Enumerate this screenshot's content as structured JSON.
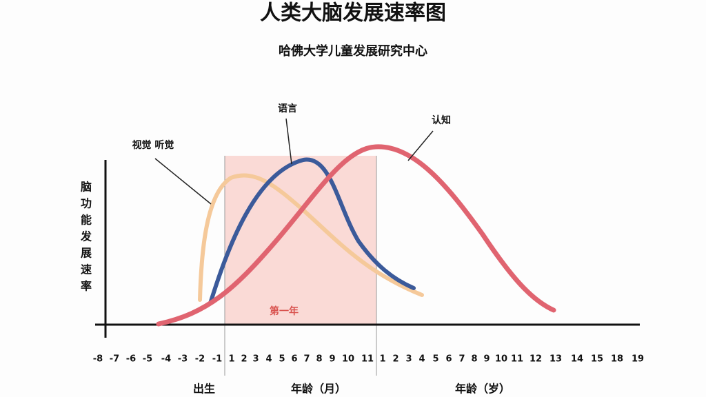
{
  "title": "人类大脑发展速率图",
  "subtitle": "哈佛大学儿童发展研究中心",
  "y_label": [
    "脑",
    "功",
    "能",
    "发",
    "展",
    "速",
    "率"
  ],
  "annotations": {
    "vision_hearing": "视觉 听觉",
    "language": "语言",
    "cognition": "认知",
    "first_year": "第一年"
  },
  "x_ticks": [
    "-8",
    "-7",
    "-6",
    "-5",
    "-4",
    "-3",
    "-2",
    "-1",
    "1",
    "2",
    "3",
    "4",
    "5",
    "6",
    "7",
    "8",
    "9",
    "10",
    "11",
    "1",
    "2",
    "3",
    "4",
    "5",
    "6",
    "7",
    "8",
    "9",
    "10",
    "11",
    "12",
    "13",
    "14",
    "15",
    "18",
    "19"
  ],
  "x_groups": {
    "birth": "出生",
    "months": "年龄（月）",
    "years": "年龄（岁）"
  }
}
